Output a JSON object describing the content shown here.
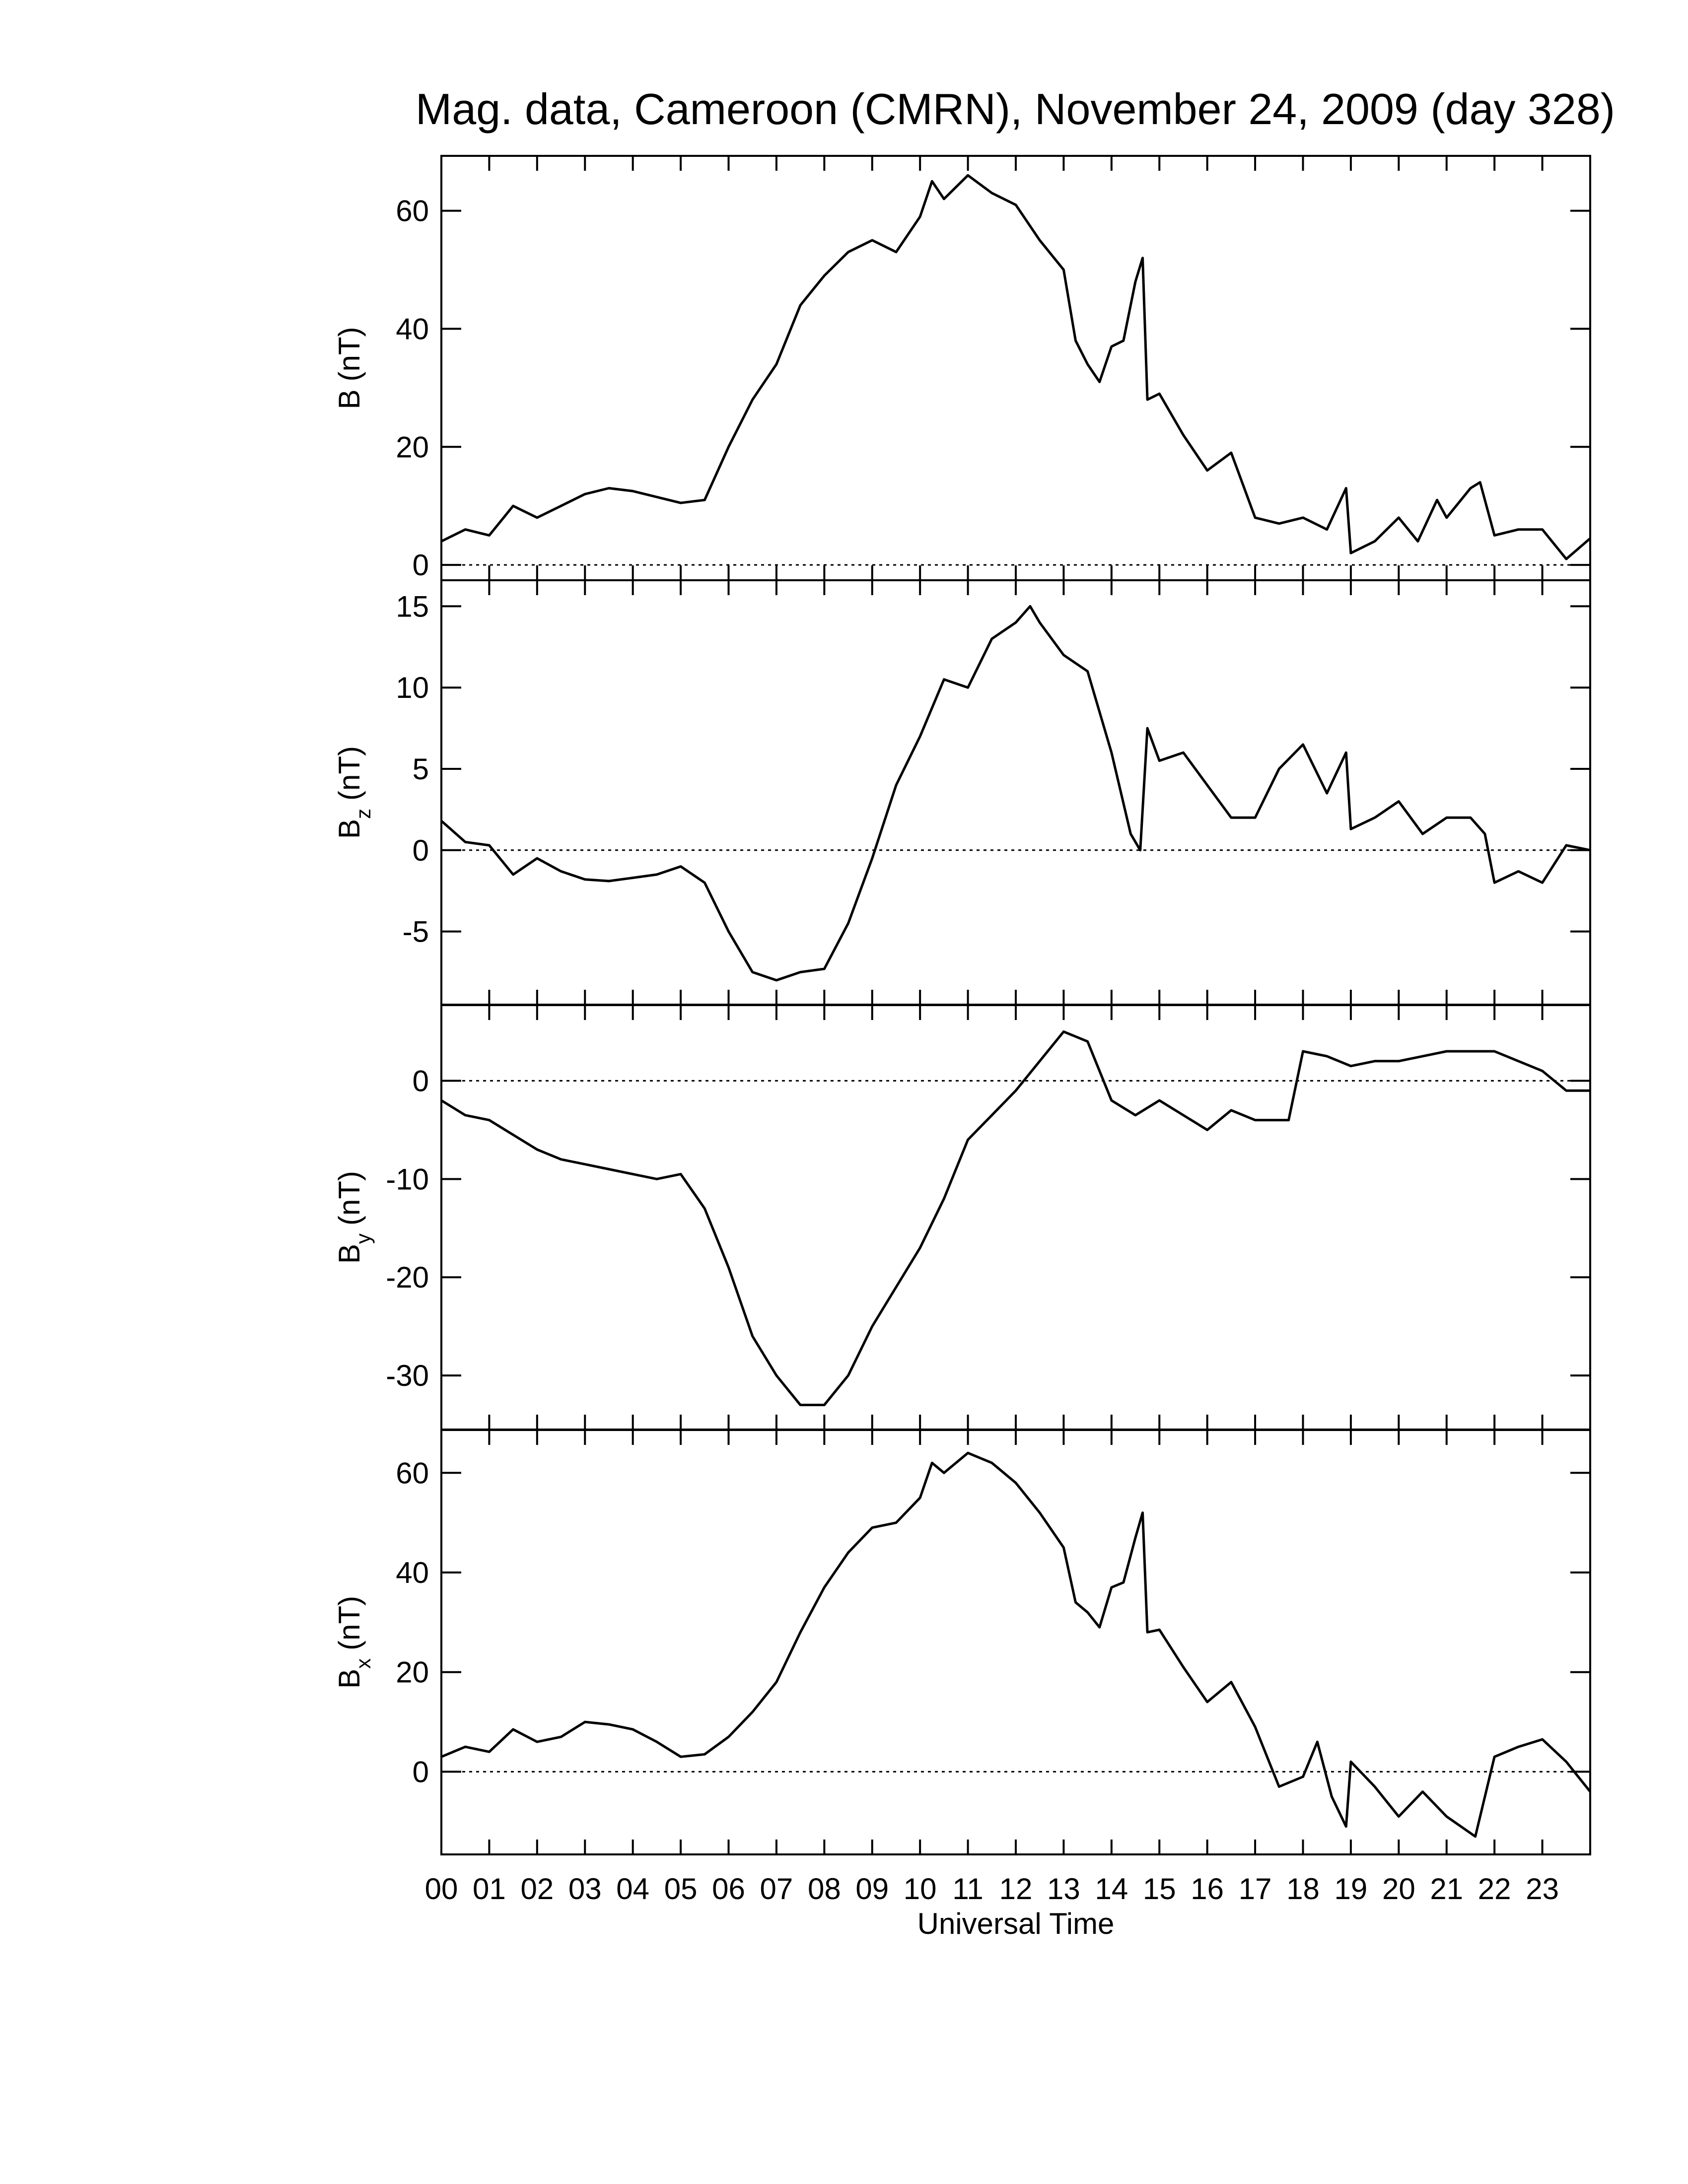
{
  "chart_data": [
    {
      "type": "line",
      "title": "Mag. data, Cameroon (CMRN), November 24, 2009 (day 328)",
      "ylabel": [
        "B",
        "(nT)"
      ],
      "color": "#000000",
      "reference_line": 0,
      "xlim": [
        0,
        24
      ],
      "ylim": [
        -2.6,
        69.3
      ],
      "yticks": [
        0,
        20,
        40,
        60
      ],
      "x": [
        0,
        0.5,
        1,
        1.5,
        2,
        2.5,
        3,
        3.5,
        4,
        4.5,
        5,
        5.5,
        6,
        6.5,
        7,
        7.5,
        8,
        8.5,
        9,
        9.5,
        10,
        10.25,
        10.5,
        11,
        11.5,
        12,
        12.5,
        13,
        13.25,
        13.5,
        13.75,
        14,
        14.25,
        14.5,
        14.65,
        14.75,
        15,
        15.5,
        16,
        16.5,
        17,
        17.5,
        18,
        18.5,
        18.9,
        19,
        19.5,
        20,
        20.4,
        20.8,
        21,
        21.5,
        21.7,
        22,
        22.5,
        23,
        23.5,
        24
      ],
      "values": [
        4,
        6,
        5,
        10,
        8,
        10,
        12,
        13,
        12.5,
        11.5,
        10.5,
        11,
        20,
        28,
        34,
        44,
        49,
        53,
        55,
        53,
        59,
        65,
        62,
        66,
        63,
        61,
        55,
        50,
        38,
        34,
        31,
        37,
        38,
        48,
        52,
        28,
        29,
        22,
        16,
        19,
        8,
        7,
        8,
        6,
        13,
        2,
        4,
        8,
        4,
        11,
        8,
        13,
        14,
        5,
        6,
        6,
        1,
        4.5
      ]
    },
    {
      "type": "line",
      "ylabel": [
        "B",
        "z",
        "(nT)"
      ],
      "color": "#000000",
      "reference_line": 0,
      "xlim": [
        0,
        24
      ],
      "ylim": [
        -9.5,
        16.6
      ],
      "yticks": [
        -5,
        0,
        5,
        10,
        15
      ],
      "x": [
        0,
        0.5,
        1,
        1.5,
        2,
        2.5,
        3,
        3.5,
        4,
        4.5,
        5,
        5.5,
        6,
        6.5,
        7,
        7.5,
        8,
        8.5,
        9,
        9.5,
        10,
        10.5,
        11,
        11.5,
        12,
        12.3,
        12.5,
        13,
        13.5,
        14,
        14.4,
        14.6,
        14.75,
        15,
        15.5,
        16,
        16.5,
        17,
        17.5,
        18,
        18.5,
        18.9,
        19,
        19.5,
        20,
        20.5,
        21,
        21.5,
        21.8,
        22,
        22.5,
        23,
        23.5,
        24
      ],
      "values": [
        1.8,
        0.5,
        0.3,
        -1.5,
        -0.5,
        -1.3,
        -1.8,
        -1.9,
        -1.7,
        -1.5,
        -1,
        -2,
        -5,
        -7.5,
        -8,
        -7.5,
        -7.3,
        -4.5,
        -0.5,
        4,
        7,
        10.5,
        10,
        13,
        14,
        15,
        14,
        12,
        11,
        6,
        1,
        0,
        7.5,
        5.5,
        6,
        4,
        2,
        2,
        5,
        6.5,
        3.5,
        6,
        1.3,
        2,
        3,
        1,
        2,
        2,
        1,
        -2,
        -1.3,
        -2,
        0.3,
        0
      ]
    },
    {
      "type": "line",
      "ylabel": [
        "B",
        "y",
        "(nT)"
      ],
      "color": "#000000",
      "reference_line": 0,
      "xlim": [
        0,
        24
      ],
      "ylim": [
        -35.5,
        7.7
      ],
      "yticks": [
        -30,
        -20,
        -10,
        0
      ],
      "x": [
        0,
        0.5,
        1,
        1.5,
        2,
        2.5,
        3,
        3.5,
        4,
        4.5,
        5,
        5.5,
        6,
        6.5,
        7,
        7.5,
        8,
        8.5,
        9,
        9.5,
        10,
        10.5,
        11,
        11.5,
        12,
        12.5,
        13,
        13.5,
        14,
        14.5,
        15,
        15.5,
        16,
        16.5,
        17,
        17.5,
        17.7,
        18,
        18.5,
        19,
        19.5,
        20,
        20.5,
        21,
        21.5,
        22,
        22.5,
        23,
        23.5,
        24
      ],
      "values": [
        -2,
        -3.5,
        -4,
        -5.5,
        -7,
        -8,
        -8.5,
        -9,
        -9.5,
        -10,
        -9.5,
        -13,
        -19,
        -26,
        -30,
        -33,
        -33,
        -30,
        -25,
        -21,
        -17,
        -12,
        -6,
        -3.5,
        -1,
        2,
        5,
        4,
        -2,
        -3.5,
        -2,
        -3.5,
        -5,
        -3,
        -4,
        -4,
        -4,
        3,
        2.5,
        1.5,
        2,
        2,
        2.5,
        3,
        3,
        3,
        2,
        1,
        -1,
        -1
      ]
    },
    {
      "type": "line",
      "ylabel": [
        "B",
        "x",
        "(nT)"
      ],
      "xlabel": "Universal Time",
      "color": "#000000",
      "reference_line": 0,
      "xlim": [
        0,
        24
      ],
      "ylim": [
        -16.6,
        68.6
      ],
      "yticks": [
        0,
        20,
        40,
        60
      ],
      "xticks": [
        {
          "value": 0,
          "label": "00"
        },
        {
          "value": 1,
          "label": "01"
        },
        {
          "value": 2,
          "label": "02"
        },
        {
          "value": 3,
          "label": "03"
        },
        {
          "value": 4,
          "label": "04"
        },
        {
          "value": 5,
          "label": "05"
        },
        {
          "value": 6,
          "label": "06"
        },
        {
          "value": 7,
          "label": "07"
        },
        {
          "value": 8,
          "label": "08"
        },
        {
          "value": 9,
          "label": "09"
        },
        {
          "value": 10,
          "label": "10"
        },
        {
          "value": 11,
          "label": "11"
        },
        {
          "value": 12,
          "label": "12"
        },
        {
          "value": 13,
          "label": "13"
        },
        {
          "value": 14,
          "label": "14"
        },
        {
          "value": 15,
          "label": "15"
        },
        {
          "value": 16,
          "label": "16"
        },
        {
          "value": 17,
          "label": "17"
        },
        {
          "value": 18,
          "label": "18"
        },
        {
          "value": 19,
          "label": "19"
        },
        {
          "value": 20,
          "label": "20"
        },
        {
          "value": 21,
          "label": "21"
        },
        {
          "value": 22,
          "label": "22"
        },
        {
          "value": 23,
          "label": "23"
        }
      ],
      "x": [
        0,
        0.5,
        1,
        1.5,
        2,
        2.5,
        3,
        3.5,
        4,
        4.5,
        5,
        5.5,
        6,
        6.5,
        7,
        7.5,
        8,
        8.5,
        9,
        9.5,
        10,
        10.25,
        10.5,
        11,
        11.5,
        12,
        12.5,
        13,
        13.25,
        13.5,
        13.75,
        14,
        14.25,
        14.5,
        14.65,
        14.75,
        15,
        15.5,
        16,
        16.5,
        17,
        17.5,
        18,
        18.3,
        18.6,
        18.9,
        19,
        19.5,
        20,
        20.5,
        21,
        21.6,
        22,
        22.5,
        23,
        23.5,
        24
      ],
      "values": [
        3,
        5,
        4,
        8.5,
        6,
        7,
        10,
        9.5,
        8.5,
        6,
        3,
        3.5,
        7,
        12,
        18,
        28,
        37,
        44,
        49,
        50,
        55,
        62,
        60,
        64,
        62,
        58,
        52,
        45,
        34,
        32,
        29,
        37,
        38,
        47,
        52,
        28,
        28.5,
        21,
        14,
        18,
        9,
        -3,
        -1,
        6,
        -5,
        -11,
        2,
        -3,
        -9,
        -4,
        -9,
        -13,
        3,
        5,
        6.5,
        2,
        -4
      ]
    }
  ]
}
